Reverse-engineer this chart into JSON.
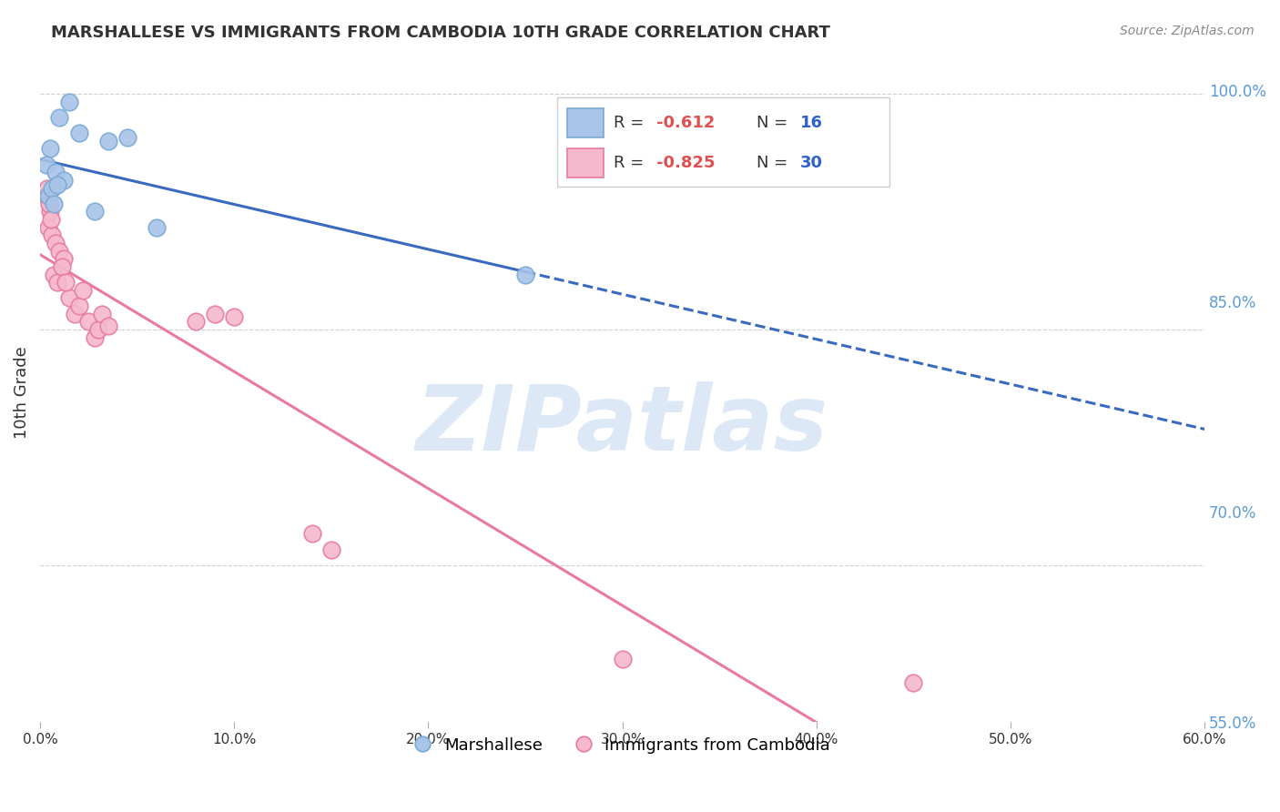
{
  "title": "MARSHALLESE VS IMMIGRANTS FROM CAMBODIA 10TH GRADE CORRELATION CHART",
  "source": "Source: ZipAtlas.com",
  "ylabel": "10th Grade",
  "watermark": "ZIPatlas",
  "blue_label": "Marshallese",
  "pink_label": "Immigrants from Cambodia",
  "blue_R": "-0.612",
  "blue_N": "16",
  "pink_R": "-0.825",
  "pink_N": "30",
  "xlim": [
    0.0,
    60.0
  ],
  "ylim": [
    60.0,
    102.0
  ],
  "yticks": [
    100.0,
    85.0,
    70.0,
    55.0
  ],
  "xticks": [
    0.0,
    10.0,
    20.0,
    30.0,
    40.0,
    50.0,
    60.0
  ],
  "blue_scatter_x": [
    0.5,
    1.0,
    1.5,
    0.3,
    0.8,
    2.0,
    1.2,
    3.5,
    2.8,
    4.5,
    0.4,
    0.6,
    0.7,
    0.9,
    6.0,
    25.0
  ],
  "blue_scatter_y": [
    96.5,
    98.5,
    99.5,
    95.5,
    95.0,
    97.5,
    94.5,
    97.0,
    92.5,
    97.2,
    93.5,
    94.0,
    93.0,
    94.2,
    91.5,
    88.5
  ],
  "pink_scatter_x": [
    0.3,
    0.5,
    0.4,
    0.6,
    0.8,
    1.0,
    1.2,
    0.7,
    0.9,
    1.5,
    1.8,
    2.0,
    2.2,
    2.5,
    2.8,
    3.0,
    3.2,
    3.5,
    0.35,
    0.45,
    0.55,
    1.1,
    1.3,
    8.0,
    9.0,
    10.0,
    14.0,
    15.0,
    30.0,
    45.0
  ],
  "pink_scatter_y": [
    93.5,
    92.5,
    91.5,
    91.0,
    90.5,
    90.0,
    89.5,
    88.5,
    88.0,
    87.0,
    86.0,
    86.5,
    87.5,
    85.5,
    84.5,
    85.0,
    86.0,
    85.2,
    94.0,
    93.0,
    92.0,
    89.0,
    88.0,
    85.5,
    86.0,
    85.8,
    72.0,
    71.0,
    64.0,
    62.5
  ],
  "blue_line_color": "#3a6abf",
  "pink_line_color": "#e87aa0",
  "blue_dot_color": "#a8c4e8",
  "pink_dot_color": "#f5b8cc",
  "blue_dot_edge": "#7aaad4",
  "pink_dot_edge": "#e87aa0",
  "grid_color": "#d0d0d0",
  "right_axis_color": "#5b9bd5",
  "watermark_color": "#dce8f5"
}
